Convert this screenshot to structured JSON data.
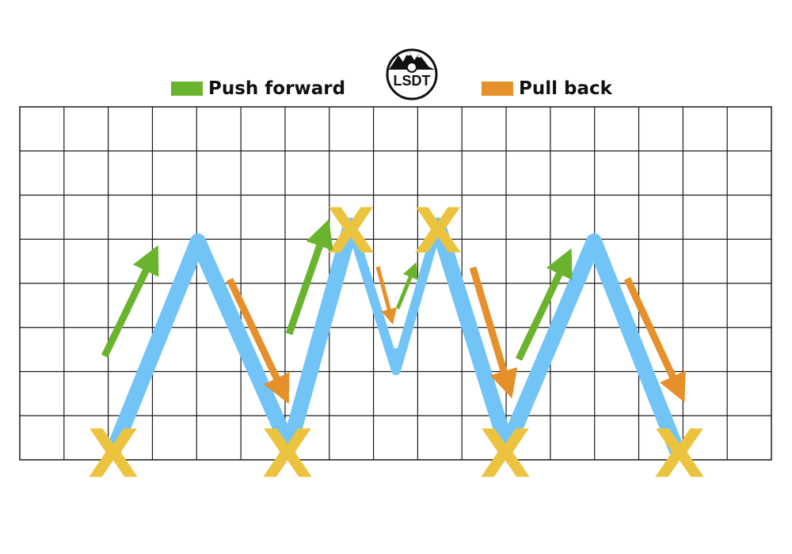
{
  "legend": {
    "push": {
      "label": "Push forward",
      "color": "#6ab42d"
    },
    "pull": {
      "label": "Pull back",
      "color": "#e5902a"
    }
  },
  "colors": {
    "path": "#72c4f7",
    "marker": "#ecc33f",
    "grid": "#1a1a1a"
  },
  "grid": {
    "columns": 17,
    "rows": 8
  },
  "markers": {
    "symbol": "X",
    "count": 6
  },
  "logo": {
    "text": "LSDT",
    "icon": "mountain-badge-icon"
  }
}
